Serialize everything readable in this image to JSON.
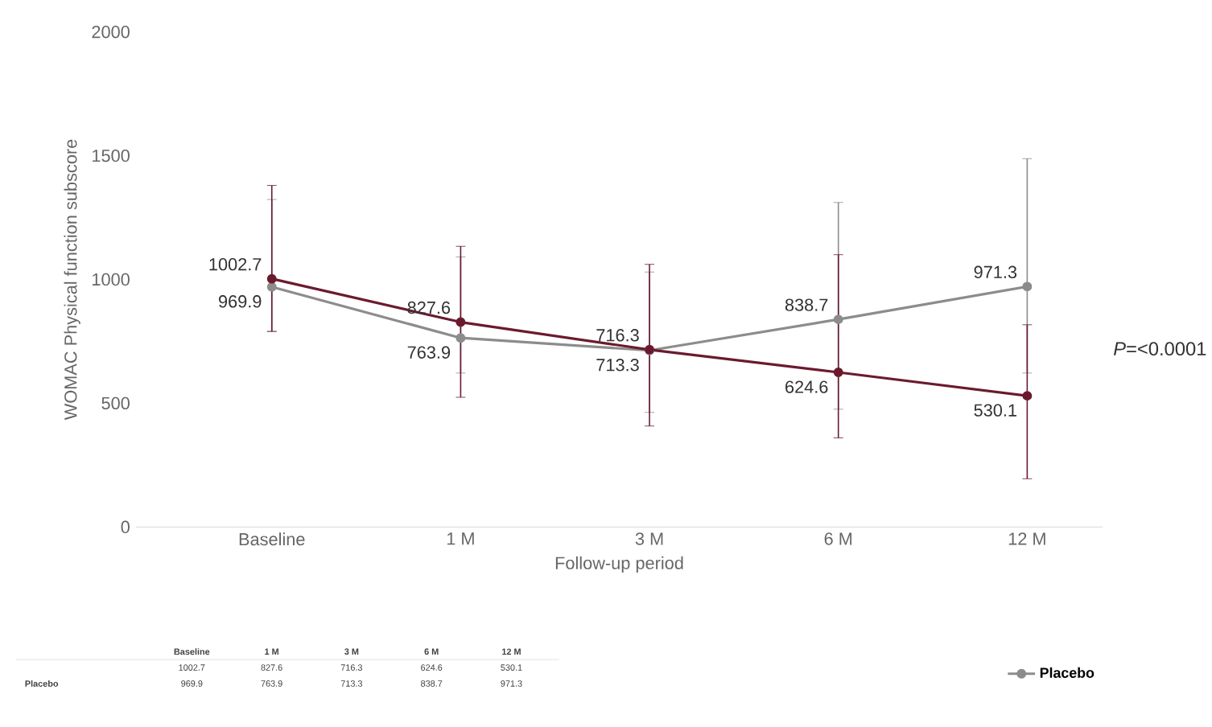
{
  "chart_data": {
    "type": "line",
    "xlabel": "Follow-up period",
    "ylabel": "WOMAC Physical function subscore",
    "categories": [
      "Baseline",
      "1 M",
      "3 M",
      "6 M",
      "12 M"
    ],
    "series": [
      {
        "color": "#6b1a2e",
        "values": [
          1002.7,
          827.6,
          716.3,
          624.6,
          530.1
        ],
        "value_labels": [
          "1002.7",
          "827.6",
          "716.3",
          "624.6",
          "530.1"
        ],
        "errors": [
          [
            790,
            1380
          ],
          [
            524,
            1134
          ],
          [
            408,
            1061
          ],
          [
            360,
            1100
          ],
          [
            195,
            817
          ]
        ]
      },
      {
        "name": "Placebo",
        "color": "#8c8c8c",
        "values": [
          969.9,
          763.9,
          713.3,
          838.7,
          971.3
        ],
        "value_labels": [
          "969.9",
          "763.9",
          "713.3",
          "838.7",
          "971.3"
        ],
        "errors": [
          [
            790,
            1323
          ],
          [
            622,
            1091
          ],
          [
            463,
            1030
          ],
          [
            476,
            1311
          ],
          [
            622,
            1488
          ]
        ]
      }
    ],
    "ylim": [
      0,
      2000
    ],
    "yticks": [
      0,
      500,
      1000,
      1500,
      2000
    ],
    "marker": "circle",
    "line_style": "solid",
    "legend": "bottom right",
    "grid": false,
    "annotations": [
      "*P*=<0.0001"
    ]
  }
}
